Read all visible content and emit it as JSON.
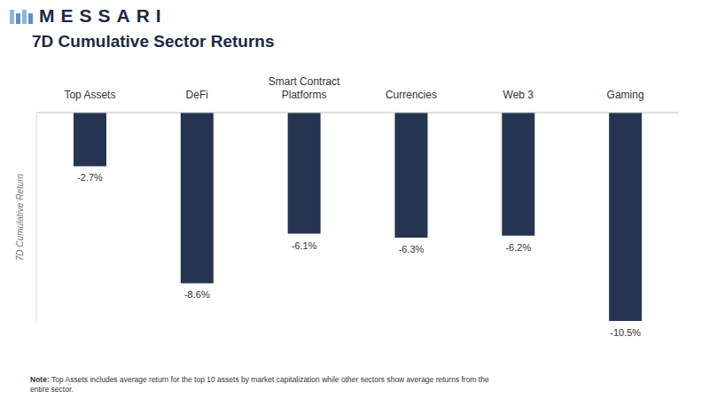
{
  "logo": "MESSARI",
  "chart_data": {
    "type": "bar",
    "title": "7D Cumulative Sector Returns",
    "y_label": "7D Cumulative Return",
    "categories": [
      "Top Assets",
      "DeFi",
      "Smart Contract Platforms",
      "Currencies",
      "Web 3",
      "Gaming"
    ],
    "values": [
      -2.7,
      -8.6,
      -6.1,
      -6.3,
      -6.2,
      -10.5
    ],
    "value_labels": [
      "-2.7%",
      "-8.6%",
      "-6.1%",
      "-6.3%",
      "-6.2%",
      "-10.5%"
    ],
    "color": "#253551",
    "ylim": [
      -10.5,
      0
    ],
    "yticks": [],
    "tick_labels": "x",
    "data_labels": true,
    "grid": false,
    "note_label": "Note:",
    "note": "Top Assets includes average return for the top 10 assets by market capitalization while other sectors show average returns from the entire sector."
  }
}
